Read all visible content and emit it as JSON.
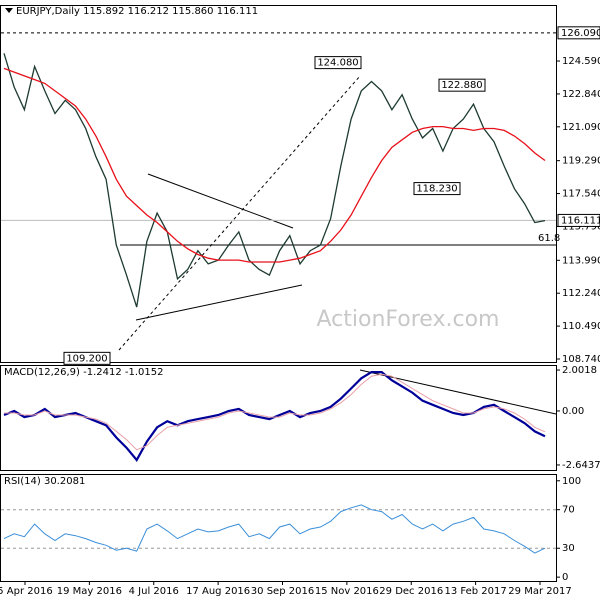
{
  "chart_data": [
    {
      "type": "line",
      "title": "EURJPY,Daily  115.892 116.212 115.860 116.111",
      "watermark": "ActionForex.com",
      "ylim": [
        108.58,
        127.57
      ],
      "yticks": [
        {
          "value": 124.59,
          "label": "124.590"
        },
        {
          "value": 122.84,
          "label": "122.840"
        },
        {
          "value": 121.09,
          "label": "121.090"
        },
        {
          "value": 119.29,
          "label": "119.290"
        },
        {
          "value": 117.54,
          "label": "117.540"
        },
        {
          "value": 115.79,
          "label": "115.790"
        },
        {
          "value": 113.99,
          "label": "113.990"
        },
        {
          "value": 112.24,
          "label": "112.240"
        },
        {
          "value": 110.49,
          "label": "110.490"
        },
        {
          "value": 108.74,
          "label": "108.740"
        }
      ],
      "current": {
        "value": 116.111,
        "label": "116.111"
      },
      "level": {
        "value": 126.09,
        "label": "126.090"
      },
      "fib_label": "61.8",
      "annotations": [
        {
          "value": 124.08,
          "label": "124.080"
        },
        {
          "value": 122.88,
          "label": "122.880"
        },
        {
          "value": 118.23,
          "label": "118.230"
        },
        {
          "value": 109.2,
          "label": "109.200"
        }
      ],
      "series": [
        {
          "name": "EURJPY",
          "color": "#1d3b30",
          "values": [
            125.0,
            123.2,
            122.0,
            124.3,
            123.0,
            121.8,
            122.5,
            122.0,
            121.0,
            119.5,
            118.3,
            114.8,
            113.2,
            111.5,
            115.0,
            116.5,
            115.5,
            113.0,
            113.5,
            114.5,
            113.8,
            114.0,
            114.8,
            115.5,
            114.0,
            113.5,
            113.2,
            114.5,
            115.3,
            113.8,
            114.5,
            114.8,
            116.2,
            119.0,
            121.5,
            123.0,
            123.5,
            123.0,
            122.0,
            122.8,
            121.5,
            120.5,
            121.0,
            119.8,
            121.0,
            121.5,
            122.3,
            121.0,
            120.3,
            119.0,
            117.8,
            117.0,
            116.0,
            116.1
          ]
        },
        {
          "name": "MA",
          "color": "#e8101a",
          "values": [
            124.2,
            124.0,
            123.8,
            123.6,
            123.4,
            123.0,
            122.6,
            122.2,
            121.5,
            120.6,
            119.5,
            118.3,
            117.4,
            116.9,
            116.4,
            116.0,
            115.5,
            115.0,
            114.6,
            114.3,
            114.1,
            114.0,
            114.0,
            114.0,
            113.9,
            113.9,
            113.9,
            113.9,
            114.0,
            114.1,
            114.3,
            114.5,
            115.0,
            115.6,
            116.4,
            117.4,
            118.4,
            119.3,
            120.0,
            120.4,
            120.8,
            121.0,
            121.1,
            121.1,
            121.0,
            121.0,
            120.9,
            121.0,
            121.0,
            120.9,
            120.6,
            120.2,
            119.7,
            119.3
          ]
        }
      ]
    },
    {
      "type": "line",
      "title": "MACD(12,26,9) -1.2412 -1.0152",
      "ylim": [
        -2.89,
        2.2
      ],
      "yticks": [
        2.0018,
        {
          "value": 0,
          "label": "0.00"
        },
        -2.6437
      ],
      "series": [
        {
          "name": "MACD",
          "color": "#000099",
          "width": 2.2,
          "values": [
            -0.2,
            0.0,
            -0.3,
            -0.2,
            0.1,
            -0.3,
            -0.2,
            -0.1,
            -0.3,
            -0.5,
            -0.7,
            -1.3,
            -1.8,
            -2.4,
            -1.5,
            -0.8,
            -0.5,
            -0.7,
            -0.5,
            -0.4,
            -0.3,
            -0.2,
            0.0,
            0.1,
            -0.2,
            -0.3,
            -0.4,
            -0.2,
            0.0,
            -0.3,
            -0.1,
            0.0,
            0.2,
            0.6,
            1.1,
            1.6,
            1.9,
            1.9,
            1.5,
            1.2,
            0.9,
            0.5,
            0.3,
            0.1,
            -0.1,
            -0.2,
            -0.1,
            0.2,
            0.3,
            0.0,
            -0.3,
            -0.6,
            -1.0,
            -1.24
          ]
        },
        {
          "name": "Signal",
          "color": "#e8a0a8",
          "width": 1,
          "values": [
            -0.1,
            -0.1,
            -0.2,
            -0.2,
            0.0,
            -0.2,
            -0.2,
            -0.2,
            -0.3,
            -0.4,
            -0.6,
            -1.0,
            -1.4,
            -1.9,
            -1.7,
            -1.2,
            -0.8,
            -0.7,
            -0.6,
            -0.5,
            -0.4,
            -0.3,
            -0.1,
            0.0,
            -0.1,
            -0.2,
            -0.3,
            -0.3,
            -0.1,
            -0.2,
            -0.2,
            -0.1,
            0.1,
            0.4,
            0.8,
            1.3,
            1.7,
            1.8,
            1.7,
            1.4,
            1.1,
            0.8,
            0.5,
            0.3,
            0.1,
            -0.1,
            -0.1,
            0.1,
            0.2,
            0.1,
            -0.1,
            -0.4,
            -0.8,
            -1.02
          ]
        }
      ]
    },
    {
      "type": "line",
      "title": "RSI(14) 30.2081",
      "ylim": [
        -4,
        106
      ],
      "yticks": [
        100,
        70,
        30,
        0
      ],
      "grid_levels": [
        70,
        30
      ],
      "series": [
        {
          "name": "RSI",
          "color": "#3b8fd9",
          "width": 1,
          "values": [
            40,
            45,
            42,
            55,
            45,
            38,
            45,
            43,
            40,
            36,
            33,
            28,
            30,
            27,
            50,
            55,
            48,
            40,
            45,
            50,
            47,
            48,
            52,
            55,
            42,
            45,
            40,
            52,
            55,
            45,
            50,
            52,
            58,
            68,
            72,
            75,
            70,
            68,
            60,
            65,
            55,
            50,
            55,
            48,
            55,
            58,
            62,
            50,
            48,
            45,
            38,
            32,
            25,
            30
          ]
        }
      ]
    }
  ],
  "xtick_labels": [
    "5 Apr 2016",
    "19 May 2016",
    "4 Jul 2016",
    "17 Aug 2016",
    "30 Sep 2016",
    "15 Nov 2016",
    "29 Dec 2016",
    "13 Feb 2017",
    "29 Mar 2017"
  ]
}
